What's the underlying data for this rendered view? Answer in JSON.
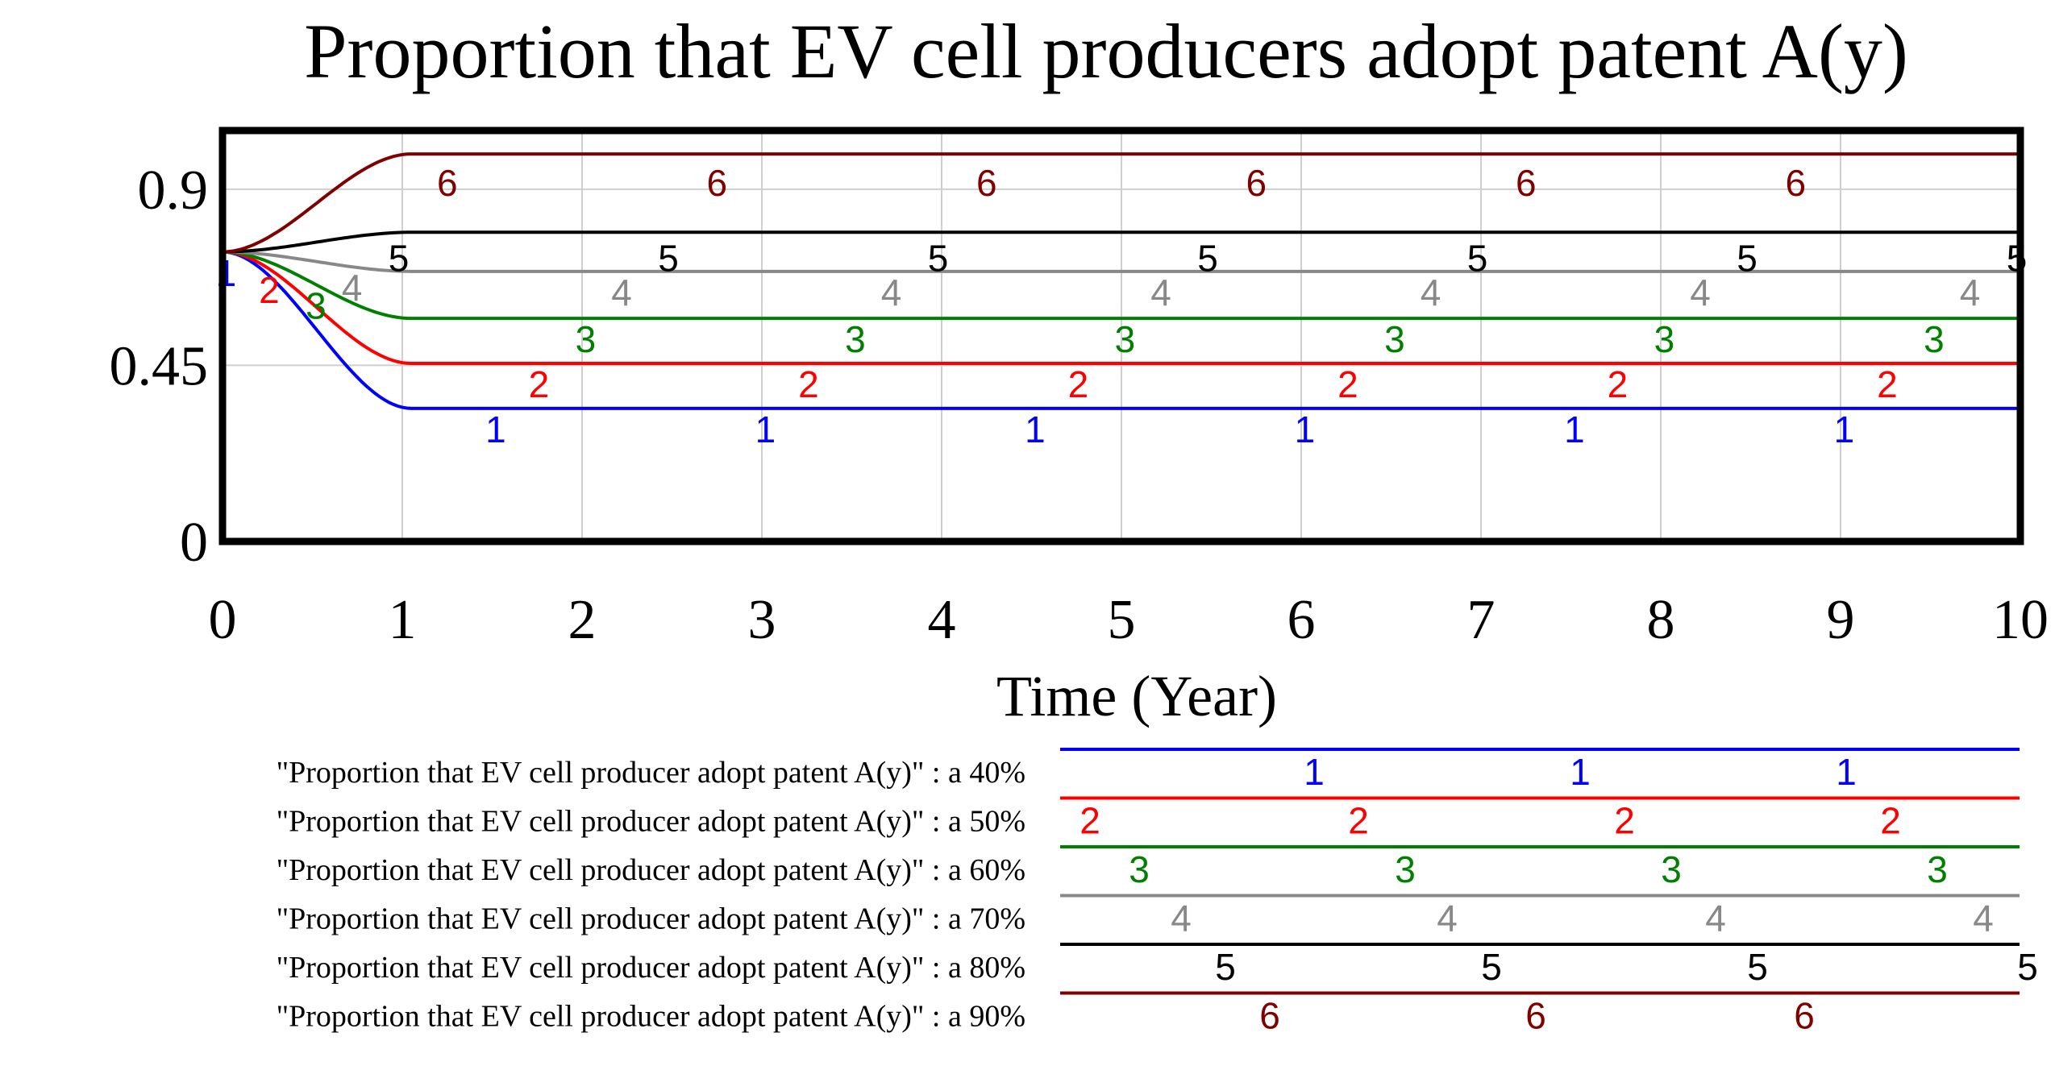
{
  "chart_data": {
    "type": "line",
    "title": "Proportion that EV cell producers adopt patent A(y)",
    "xlabel": "Time (Year)",
    "ylabel": "",
    "xlim": [
      0,
      10
    ],
    "ylim": [
      0,
      1.05
    ],
    "x_ticks": [
      "0",
      "1",
      "2",
      "3",
      "4",
      "5",
      "6",
      "7",
      "8",
      "9",
      "10"
    ],
    "y_ticks": [
      {
        "value": 0,
        "label": "0"
      },
      {
        "value": 0.45,
        "label": "0.45"
      },
      {
        "value": 0.9,
        "label": "0.9"
      }
    ],
    "start_value": 0.74,
    "series": [
      {
        "id": "1",
        "name": "\"Proportion that EV cell producer adopt patent A(y)\" : a 40%",
        "color": "#0000ff",
        "final": 0.34
      },
      {
        "id": "2",
        "name": "\"Proportion that EV cell producer adopt patent A(y)\" : a 50%",
        "color": "#ff0000",
        "final": 0.455
      },
      {
        "id": "3",
        "name": "\"Proportion that EV cell producer adopt patent A(y)\" : a 60%",
        "color": "#008000",
        "final": 0.57
      },
      {
        "id": "4",
        "name": "\"Proportion that EV cell producer adopt patent A(y)\" : a 70%",
        "color": "#888888",
        "final": 0.69
      },
      {
        "id": "5",
        "name": "\"Proportion that EV cell producer adopt patent A(y)\" : a 80%",
        "color": "#000000",
        "final": 0.79
      },
      {
        "id": "6",
        "name": "\"Proportion that EV cell producer adopt patent A(y)\" : a 90%",
        "color": "#800000",
        "final": 0.99
      }
    ]
  }
}
